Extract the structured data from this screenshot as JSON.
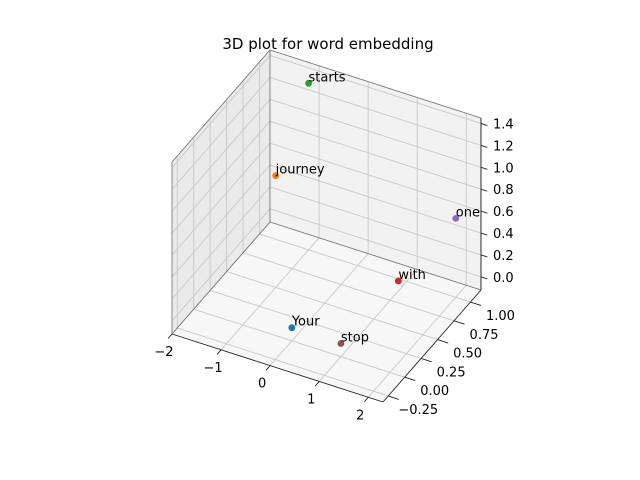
{
  "chart_data": {
    "type": "scatter",
    "title": "3D plot for word embedding",
    "points": [
      {
        "label": "Your",
        "x": 0.0,
        "y": 0.0,
        "z": 0.0,
        "color": "#1f77b4"
      },
      {
        "label": "journey",
        "x": -1.0,
        "y": 0.5,
        "z": 0.9,
        "color": "#ff7f0e"
      },
      {
        "label": "starts",
        "x": -1.0,
        "y": 1.0,
        "z": 1.4,
        "color": "#2ca02c"
      },
      {
        "label": "with",
        "x": 1.5,
        "y": 0.5,
        "z": 0.3,
        "color": "#d62728"
      },
      {
        "label": "one",
        "x": 2.0,
        "y": 1.0,
        "z": 0.6,
        "color": "#9467bd"
      },
      {
        "label": "stop",
        "x": 1.0,
        "y": 0.0,
        "z": 0.0,
        "color": "#8c564b"
      }
    ],
    "xlim": [
      -2,
      2.3
    ],
    "ylim": [
      -0.33,
      1.16
    ],
    "zlim": [
      -0.12,
      1.45
    ],
    "x_ticks": [
      "−2",
      "−1",
      "0",
      "1",
      "2"
    ],
    "y_ticks": [
      "−0.25",
      "0.00",
      "0.25",
      "0.50",
      "0.75",
      "1.00"
    ],
    "z_ticks": [
      "0.0",
      "0.2",
      "0.4",
      "0.6",
      "0.8",
      "1.0",
      "1.2",
      "1.4"
    ],
    "grid": true
  }
}
